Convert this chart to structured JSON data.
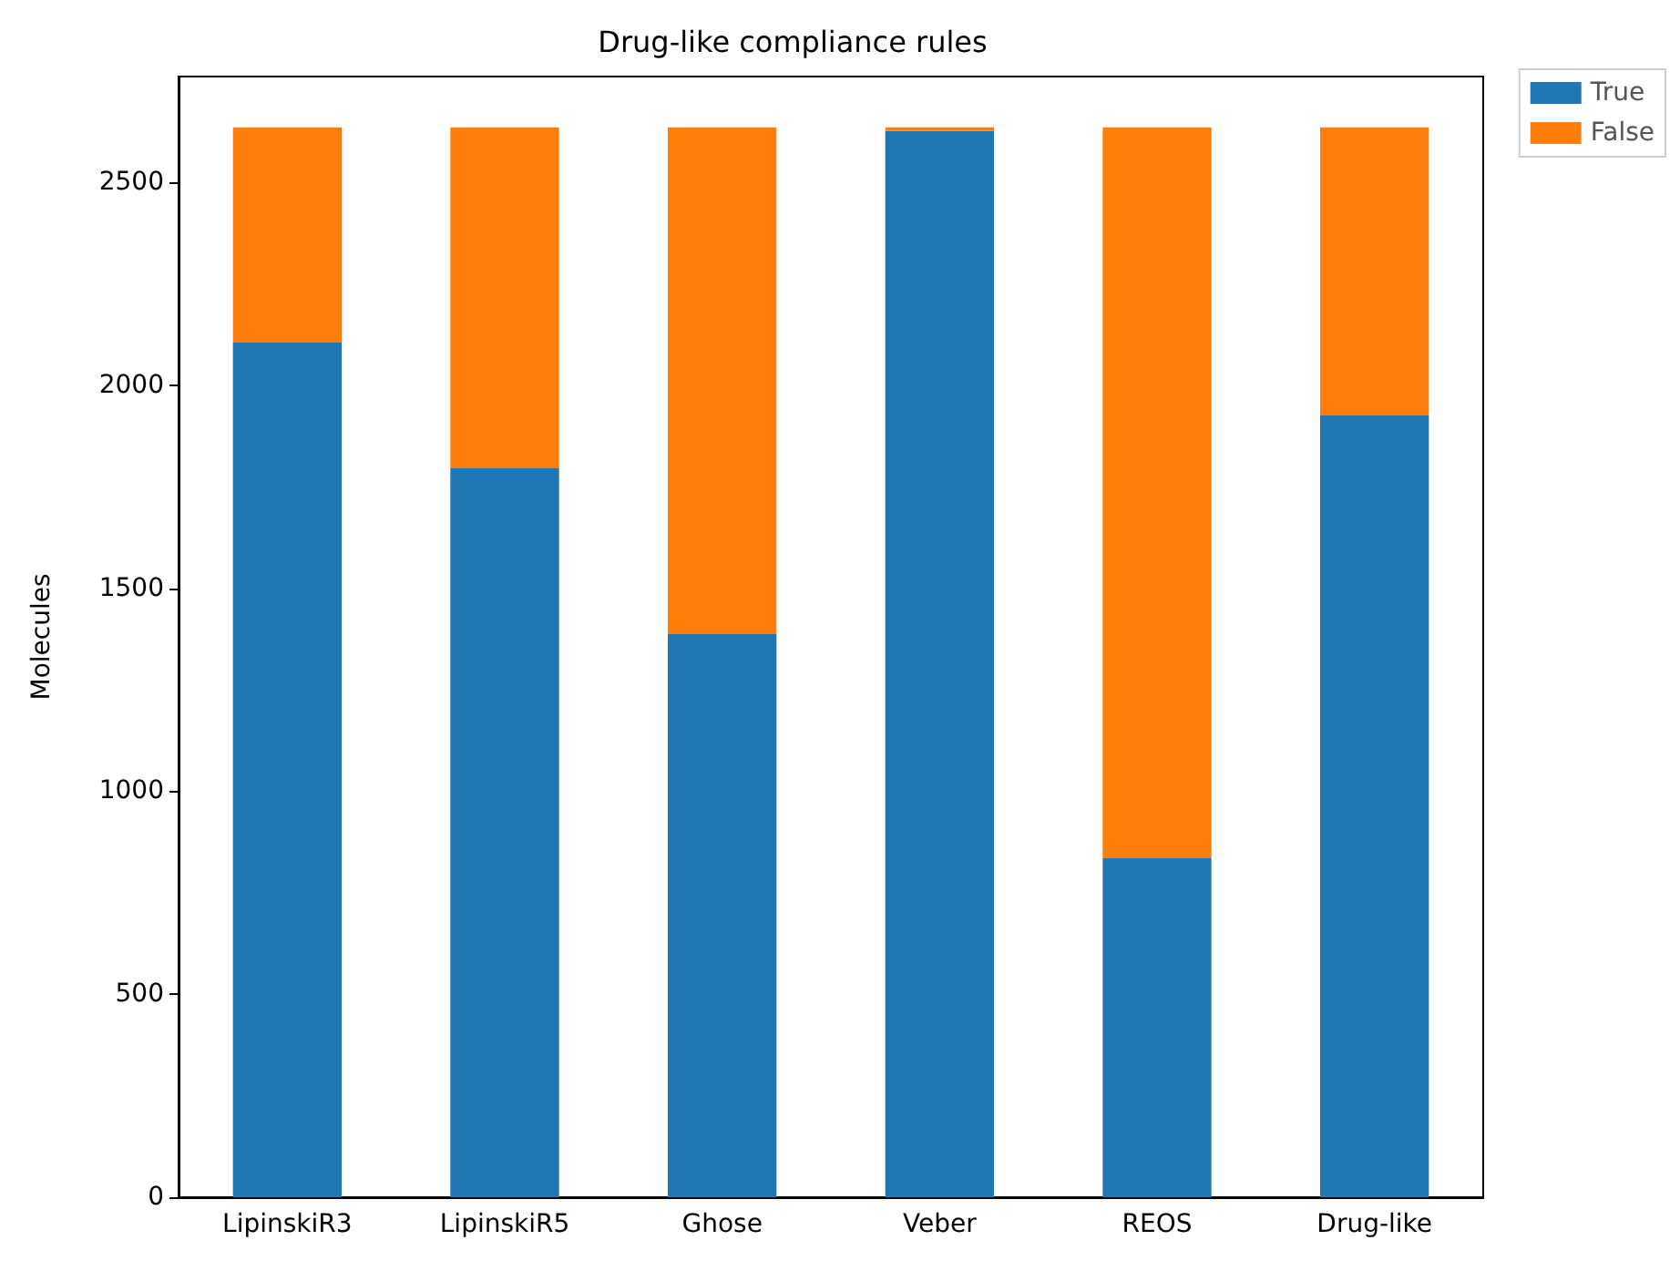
{
  "chart_data": {
    "type": "bar",
    "title": "Drug-like compliance rules",
    "ylabel": "Molecules",
    "categories": [
      "LipinskiR3",
      "LipinskiR5",
      "Ghose",
      "Veber",
      "REOS",
      "Drug-like"
    ],
    "stacked": true,
    "series": [
      {
        "name": "True",
        "color": "#1f77b4",
        "values": [
          2105,
          1795,
          1387,
          2626,
          835,
          1925
        ]
      },
      {
        "name": "False",
        "color": "#ff7f0e",
        "values": [
          530,
          840,
          1248,
          9,
          1800,
          710
        ]
      }
    ],
    "ylim": [
      0,
      2760
    ],
    "yticks": [
      0,
      500,
      1000,
      1500,
      2000,
      2500
    ],
    "legend": "top right",
    "grid": false
  }
}
